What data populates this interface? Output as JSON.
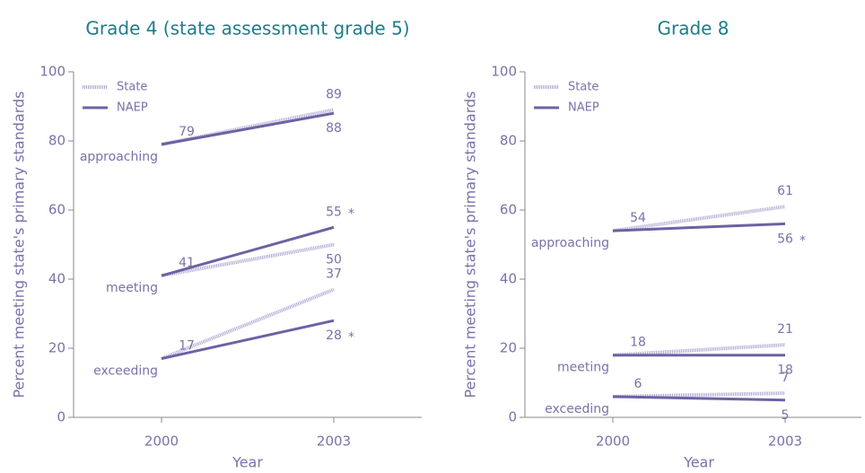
{
  "chart_data": [
    {
      "type": "line",
      "title": "Grade 4 (state assessment grade 5)",
      "ylabel": "Percent meeting state's primary standards",
      "xlabel": "Year",
      "categories": [
        "2000",
        "2003"
      ],
      "ylim": [
        0,
        100
      ],
      "yticks": [
        0,
        20,
        40,
        60,
        80,
        100
      ],
      "series": [
        {
          "name": "State",
          "color": "#a9a4cf",
          "dashed": true
        },
        {
          "name": "NAEP",
          "color": "#6c62a3",
          "dashed": false
        }
      ],
      "levels": [
        {
          "label": "approaching",
          "state": [
            79,
            89
          ],
          "naep": [
            79,
            88
          ]
        },
        {
          "label": "meeting",
          "state": [
            41,
            50
          ],
          "naep": [
            41,
            55
          ],
          "flag": "*"
        },
        {
          "label": "exceeding",
          "state": [
            17,
            37
          ],
          "naep": [
            17,
            28
          ],
          "flag": "*"
        }
      ]
    },
    {
      "type": "line",
      "title": "Grade 8",
      "ylabel": "Percent meeting state's primary standards",
      "xlabel": "Year",
      "categories": [
        "2000",
        "2003"
      ],
      "ylim": [
        0,
        100
      ],
      "yticks": [
        0,
        20,
        40,
        60,
        80,
        100
      ],
      "series": [
        {
          "name": "State",
          "color": "#a9a4cf",
          "dashed": true
        },
        {
          "name": "NAEP",
          "color": "#6c62a3",
          "dashed": false
        }
      ],
      "levels": [
        {
          "label": "approaching",
          "state": [
            54,
            61
          ],
          "naep": [
            54,
            56
          ],
          "flag": "*"
        },
        {
          "label": "meeting",
          "state": [
            18,
            21
          ],
          "naep": [
            18,
            18
          ]
        },
        {
          "label": "exceeding",
          "state": [
            6,
            7
          ],
          "naep": [
            6,
            5
          ]
        }
      ]
    }
  ]
}
